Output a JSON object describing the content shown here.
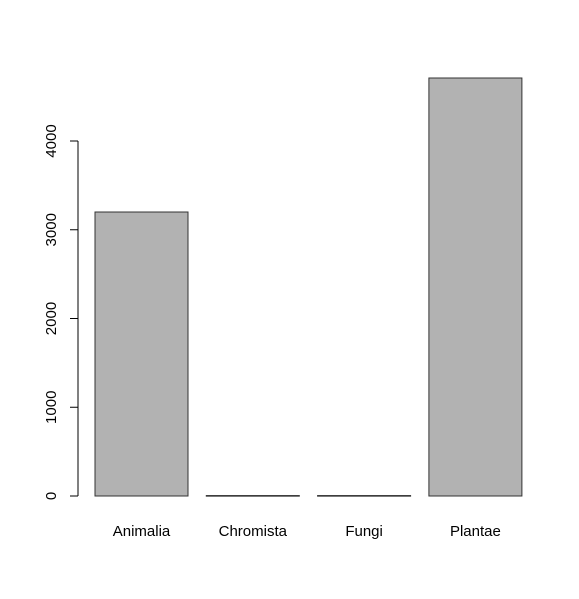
{
  "chart_data": {
    "type": "bar",
    "categories": [
      "Animalia",
      "Chromista",
      "Fungi",
      "Plantae"
    ],
    "values": [
      3200,
      5,
      5,
      4710
    ],
    "ylim": [
      0,
      4710
    ],
    "yticks": [
      0,
      1000,
      2000,
      3000,
      4000
    ],
    "ytick_labels": [
      "0",
      "1000",
      "2000",
      "3000",
      "4000"
    ],
    "title": "",
    "xlabel": "",
    "ylabel": "",
    "bar_color": "#b2b2b2",
    "bar_edge_color": "#333333",
    "grid": false,
    "legend": "none"
  }
}
